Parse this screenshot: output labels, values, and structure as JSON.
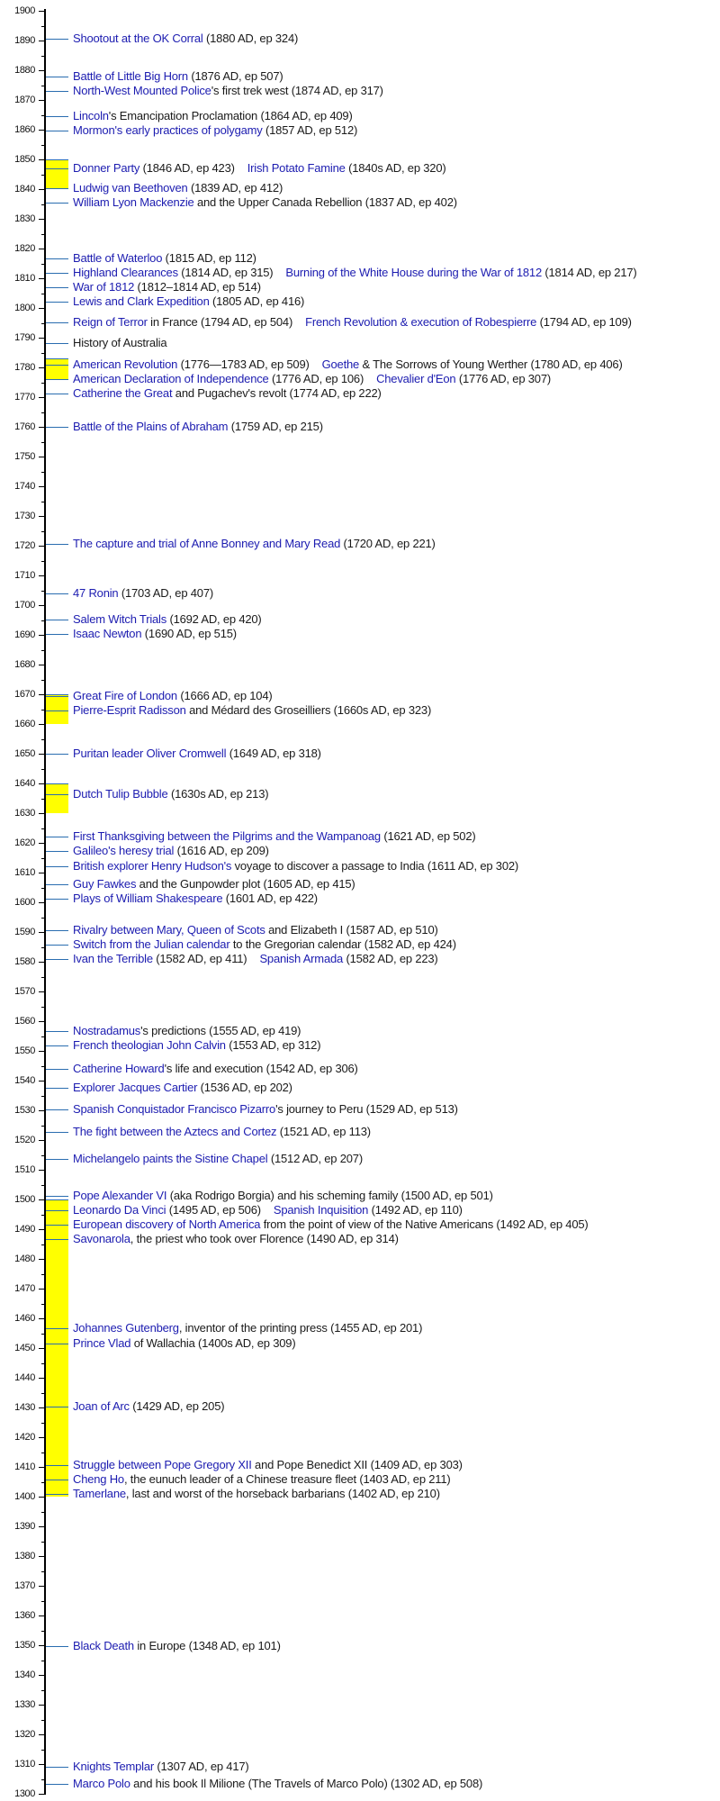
{
  "colors": {
    "link": "#1c1cb0",
    "text": "#1a1a1a",
    "connector": "#2a6db0",
    "era_highlight": "#ffff00",
    "axis": "#000000"
  },
  "axis": {
    "major_tick_labels": [
      "1900",
      "1890",
      "1880",
      "1870",
      "1860",
      "1850",
      "1840",
      "1830",
      "1820",
      "1810",
      "1800",
      "1790",
      "1780",
      "1770",
      "1760",
      "1750",
      "1740",
      "1730",
      "1720",
      "1710",
      "1700",
      "1690",
      "1680",
      "1670",
      "1660",
      "1650",
      "1640",
      "1630",
      "1620",
      "1610",
      "1600",
      "1590",
      "1580",
      "1570",
      "1560",
      "1550",
      "1540",
      "1530",
      "1520",
      "1510",
      "1500",
      "1490",
      "1480",
      "1470",
      "1460",
      "1450",
      "1440",
      "1430",
      "1420",
      "1410",
      "1400",
      "1390",
      "1380",
      "1370",
      "1360",
      "1350",
      "1340",
      "1330",
      "1320",
      "1310",
      "1300"
    ]
  },
  "era_highlights": [
    {
      "from": 1840,
      "to": 1850
    },
    {
      "from": 1776,
      "to": 1783
    },
    {
      "from": 1660,
      "to": 1670
    },
    {
      "from": 1630,
      "to": 1640
    },
    {
      "from": 1400,
      "to": 1500
    }
  ],
  "rows": [
    {
      "events": [
        {
          "link": "Shootout at the OK Corral",
          "text": " (1880 AD, ep 324)"
        }
      ]
    },
    {
      "events": [
        {
          "link": "Battle of Little Big Horn",
          "text": " (1876 AD, ep 507)"
        }
      ]
    },
    {
      "events": [
        {
          "link": "North-West Mounted Police",
          "text": "'s first trek west (1874 AD, ep 317)"
        }
      ]
    },
    {
      "events": [
        {
          "link": "Lincoln",
          "text": "'s Emancipation Proclamation (1864 AD, ep 409)"
        }
      ]
    },
    {
      "events": [
        {
          "link": "Mormon's early practices of polygamy",
          "text": " (1857 AD, ep 512)"
        }
      ]
    },
    {
      "events": [
        {
          "link": "Donner Party",
          "text": " (1846 AD, ep 423)"
        },
        {
          "link": "Irish Potato Famine",
          "text": " (1840s AD, ep 320)"
        }
      ]
    },
    {
      "events": [
        {
          "link": "Ludwig van Beethoven",
          "text": " (1839 AD, ep 412)"
        }
      ]
    },
    {
      "events": [
        {
          "link": "William Lyon Mackenzie",
          "text": " and the Upper Canada Rebellion (1837 AD, ep 402)"
        }
      ]
    },
    {
      "events": [
        {
          "link": "Battle of Waterloo",
          "text": " (1815 AD, ep 112)"
        }
      ]
    },
    {
      "events": [
        {
          "link": "Highland Clearances",
          "text": " (1814 AD, ep 315)"
        },
        {
          "link": "Burning of the White House during the War of 1812",
          "text": " (1814 AD, ep 217)"
        }
      ]
    },
    {
      "events": [
        {
          "link": "War of 1812",
          "text": " (1812–1814 AD, ep 514)"
        }
      ]
    },
    {
      "events": [
        {
          "link": "Lewis and Clark Expedition",
          "text": " (1805 AD, ep 416)"
        }
      ]
    },
    {
      "events": [
        {
          "link": "Reign of Terror",
          "text": " in France (1794 AD, ep 504)"
        },
        {
          "link": "French Revolution & execution of Robespierre",
          "text": " (1794 AD, ep 109)"
        }
      ]
    },
    {
      "events": [
        {
          "link": "",
          "text": "History of Australia"
        }
      ]
    },
    {
      "events": [
        {
          "link": "American Revolution",
          "text": " (1776—1783 AD, ep 509)"
        },
        {
          "link": "Goethe",
          "text": " & The Sorrows of Young Werther (1780 AD, ep 406)"
        }
      ]
    },
    {
      "events": [
        {
          "link": "American Declaration of Independence",
          "text": " (1776 AD, ep 106)"
        },
        {
          "link": "Chevalier d'Eon",
          "text": " (1776 AD, ep 307)"
        }
      ]
    },
    {
      "events": [
        {
          "link": "Catherine the Great",
          "text": " and Pugachev's revolt (1774 AD, ep 222)"
        }
      ]
    },
    {
      "events": [
        {
          "link": "Battle of the Plains of Abraham",
          "text": " (1759 AD, ep 215)"
        }
      ]
    },
    {
      "events": [
        {
          "link": "The capture and trial of Anne Bonney and Mary Read",
          "text": " (1720 AD, ep 221)"
        }
      ]
    },
    {
      "events": [
        {
          "link": "47 Ronin",
          "text": " (1703 AD, ep 407)"
        }
      ]
    },
    {
      "events": [
        {
          "link": "Salem Witch Trials",
          "text": " (1692 AD, ep 420)"
        }
      ]
    },
    {
      "events": [
        {
          "link": "Isaac Newton",
          "text": " (1690 AD, ep 515)"
        }
      ]
    },
    {
      "events": [
        {
          "link": "Great Fire of London",
          "text": " (1666 AD, ep 104)"
        }
      ]
    },
    {
      "events": [
        {
          "link": "Pierre-Esprit Radisson",
          "text": " and Médard des Groseilliers (1660s AD, ep 323)"
        }
      ]
    },
    {
      "events": [
        {
          "link": "Puritan leader Oliver Cromwell",
          "text": " (1649 AD, ep 318)"
        }
      ]
    },
    {
      "events": [
        {
          "link": "Dutch Tulip Bubble",
          "text": " (1630s AD, ep 213)"
        }
      ]
    },
    {
      "events": [
        {
          "link": "First Thanksgiving between the Pilgrims and the Wampanoag",
          "text": " (1621 AD, ep 502)"
        }
      ]
    },
    {
      "events": [
        {
          "link": "Galileo's heresy trial",
          "text": " (1616 AD, ep 209)"
        }
      ]
    },
    {
      "events": [
        {
          "link": "British explorer Henry Hudson's",
          "text": " voyage to discover a passage to India (1611 AD, ep 302)"
        }
      ]
    },
    {
      "events": [
        {
          "link": "Guy Fawkes",
          "text": " and the Gunpowder plot (1605 AD, ep 415)"
        }
      ]
    },
    {
      "events": [
        {
          "link": "Plays of William Shakespeare",
          "text": " (1601 AD, ep 422)"
        }
      ]
    },
    {
      "events": [
        {
          "link": "Rivalry between Mary, Queen of Scots",
          "text": " and Elizabeth I (1587 AD, ep 510)"
        }
      ]
    },
    {
      "events": [
        {
          "link": "Switch from the Julian calendar",
          "text": " to the Gregorian calendar (1582 AD, ep 424)"
        }
      ]
    },
    {
      "events": [
        {
          "link": "Ivan the Terrible",
          "text": " (1582 AD, ep 411)"
        },
        {
          "link": "Spanish Armada",
          "text": " (1582 AD, ep 223)"
        }
      ]
    },
    {
      "events": [
        {
          "link": "Nostradamus",
          "text": "'s predictions (1555 AD, ep 419)"
        }
      ]
    },
    {
      "events": [
        {
          "link": "French theologian John Calvin",
          "text": " (1553 AD, ep 312)"
        }
      ]
    },
    {
      "events": [
        {
          "link": "Catherine Howard",
          "text": "'s life and execution (1542 AD, ep 306)"
        }
      ]
    },
    {
      "events": [
        {
          "link": "Explorer Jacques Cartier",
          "text": " (1536 AD, ep 202)"
        }
      ]
    },
    {
      "events": [
        {
          "link": "Spanish Conquistador Francisco Pizarro",
          "text": "'s journey to Peru (1529 AD, ep 513)"
        }
      ]
    },
    {
      "events": [
        {
          "link": "The fight between the Aztecs and Cortez",
          "text": " (1521 AD, ep 113)"
        }
      ]
    },
    {
      "events": [
        {
          "link": "Michelangelo paints the Sistine Chapel",
          "text": " (1512 AD, ep 207)"
        }
      ]
    },
    {
      "events": [
        {
          "link": "Pope Alexander VI",
          "text": " (aka Rodrigo Borgia) and his scheming family (1500 AD, ep 501)"
        }
      ]
    },
    {
      "events": [
        {
          "link": "Leonardo Da Vinci",
          "text": " (1495 AD, ep 506)"
        },
        {
          "link": "Spanish Inquisition",
          "text": " (1492 AD, ep 110)"
        }
      ]
    },
    {
      "events": [
        {
          "link": "European discovery of North America",
          "text": " from the point of view of the Native Americans (1492 AD, ep 405)"
        }
      ]
    },
    {
      "events": [
        {
          "link": "Savonarola",
          "text": ", the priest who took over Florence (1490 AD, ep 314)"
        }
      ]
    },
    {
      "events": [
        {
          "link": "Johannes Gutenberg",
          "text": ", inventor of the printing press (1455 AD, ep 201)"
        }
      ]
    },
    {
      "events": [
        {
          "link": "Prince Vlad",
          "text": " of Wallachia (1400s AD, ep 309)"
        }
      ]
    },
    {
      "events": [
        {
          "link": "Joan of Arc",
          "text": " (1429 AD, ep 205)"
        }
      ]
    },
    {
      "events": [
        {
          "link": "Struggle between Pope Gregory XII",
          "text": " and Pope Benedict XII (1409 AD, ep 303)"
        }
      ]
    },
    {
      "events": [
        {
          "link": "Cheng Ho",
          "text": ", the eunuch leader of a Chinese treasure fleet (1403 AD, ep 211)"
        }
      ]
    },
    {
      "events": [
        {
          "link": "Tamerlane",
          "text": ", last and worst of the horseback barbarians (1402 AD, ep 210)"
        }
      ]
    },
    {
      "events": [
        {
          "link": "Black Death",
          "text": " in Europe (1348 AD, ep 101)"
        }
      ]
    },
    {
      "events": [
        {
          "link": "Knights Templar",
          "text": " (1307 AD, ep 417)"
        }
      ]
    },
    {
      "events": [
        {
          "link": "Marco Polo",
          "text": " and his book Il Milione (The Travels of Marco Polo) (1302 AD, ep 508)"
        }
      ]
    }
  ]
}
